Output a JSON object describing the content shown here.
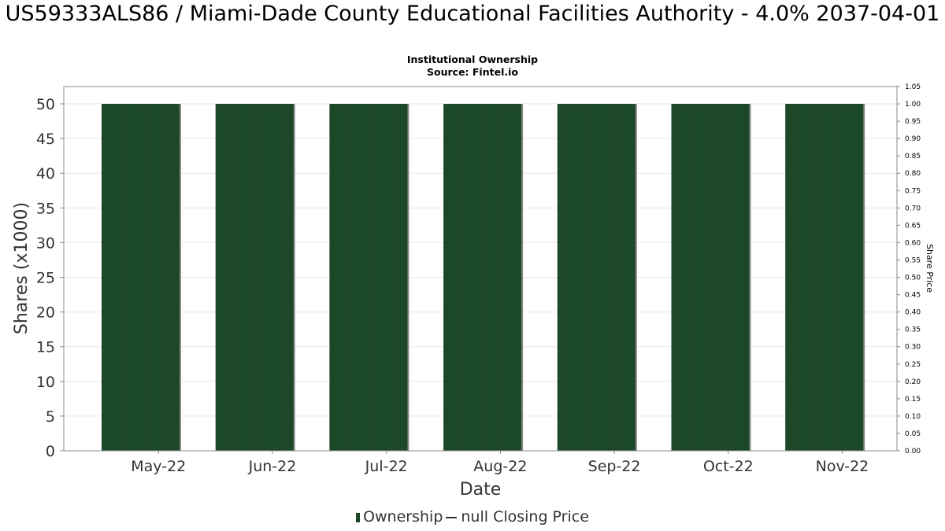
{
  "title": "US59333ALS86 / Miami-Dade County Educational Facilities Authority - 4.0% 2037-04-01",
  "subtitle_line1": "Institutional Ownership",
  "subtitle_line2": "Source: Fintel.io",
  "legend": {
    "ownership": "Ownership",
    "price": "null Closing Price"
  },
  "colors": {
    "bar": "#1a4726",
    "bar_edge": "#888888",
    "grid": "#e6e6e6"
  },
  "chart_data": {
    "type": "bar",
    "title": "US59333ALS86 / Miami-Dade County Educational Facilities Authority - 4.0% 2037-04-01",
    "xlabel": "Date",
    "ylabel": "Shares (x1000)",
    "y2label": "Share Price",
    "categories": [
      "May-22",
      "Jun-22",
      "Jul-22",
      "Aug-22",
      "Sep-22",
      "Oct-22",
      "Nov-22"
    ],
    "series": [
      {
        "name": "Ownership",
        "values": [
          50,
          50,
          50,
          50,
          50,
          50,
          50
        ]
      }
    ],
    "ylim": [
      0,
      52.5
    ],
    "yticks": [
      "0",
      "5",
      "10",
      "15",
      "20",
      "25",
      "30",
      "35",
      "40",
      "45",
      "50"
    ],
    "y2lim": [
      0,
      1.05
    ],
    "y2ticks": [
      "0.00",
      "0.05",
      "0.10",
      "0.15",
      "0.20",
      "0.25",
      "0.30",
      "0.35",
      "0.40",
      "0.45",
      "0.50",
      "0.55",
      "0.60",
      "0.65",
      "0.70",
      "0.75",
      "0.80",
      "0.85",
      "0.90",
      "0.95",
      "1.00",
      "1.05"
    ],
    "grid": true,
    "legend_position": "bottom"
  }
}
